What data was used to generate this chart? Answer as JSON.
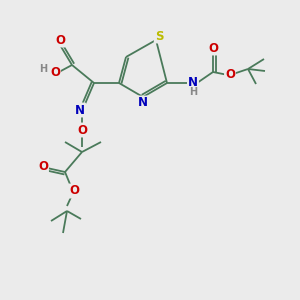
{
  "background_color": "#ebebeb",
  "atom_colors": {
    "C": "#4a7a5a",
    "H": "#888888",
    "N": "#0000bb",
    "O": "#cc0000",
    "S": "#bbbb00"
  },
  "bond_color": "#4a7a5a",
  "figsize": [
    3.0,
    3.0
  ],
  "dpi": 100
}
